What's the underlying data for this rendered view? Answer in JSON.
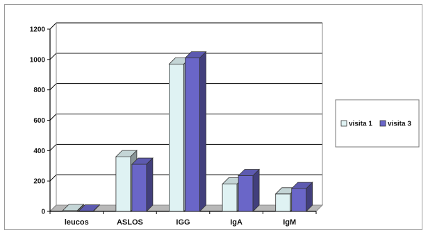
{
  "chart_data": {
    "type": "bar",
    "style": "3d-clustered-column",
    "categories": [
      "leucos",
      "ASLOS",
      "IGG",
      "IgA",
      "IgM"
    ],
    "series": [
      {
        "name": "visita 1",
        "values": [
          5,
          360,
          970,
          180,
          115
        ],
        "color": "#dff2f3"
      },
      {
        "name": "visita 3",
        "values": [
          2,
          310,
          1010,
          235,
          150
        ],
        "color": "#6a66c8"
      }
    ],
    "ylim": [
      0,
      1200
    ],
    "yticks": [
      0,
      200,
      400,
      600,
      800,
      1000,
      1200
    ],
    "grid": true,
    "legend": "right",
    "colors": {
      "grid": "#000000",
      "wall": "#ffffff",
      "floor": "#b8b8b8"
    }
  }
}
